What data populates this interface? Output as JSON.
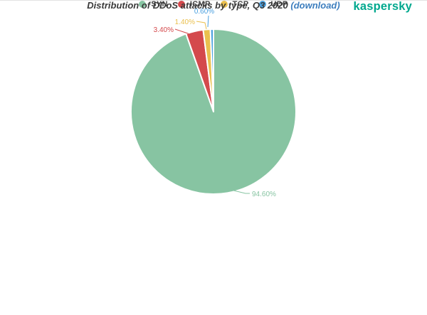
{
  "chart_data": {
    "type": "pie",
    "title": "Distribution of DDoS attacks by type, Q3 2020",
    "direction": "clockwise",
    "start_angle": "12 o'clock",
    "legend_position": "bottom",
    "slices": [
      {
        "label": "SYN",
        "value": 94.6,
        "display": "94.60%",
        "color": "#87C4A2"
      },
      {
        "label": "ICMP",
        "value": 3.4,
        "display": "3.40%",
        "color": "#D4494C"
      },
      {
        "label": "TCP",
        "value": 1.4,
        "display": "1.40%",
        "color": "#EAC04E"
      },
      {
        "label": "UDP",
        "value": 0.6,
        "display": "0.60%",
        "color": "#4BA0DF"
      }
    ]
  },
  "branding": {
    "logo_text": "kaspersky",
    "logo_color": "#00A88E"
  },
  "caption": {
    "text": "Distribution of DDoS attacks by type, Q3 2020",
    "link_label": "(download)"
  }
}
